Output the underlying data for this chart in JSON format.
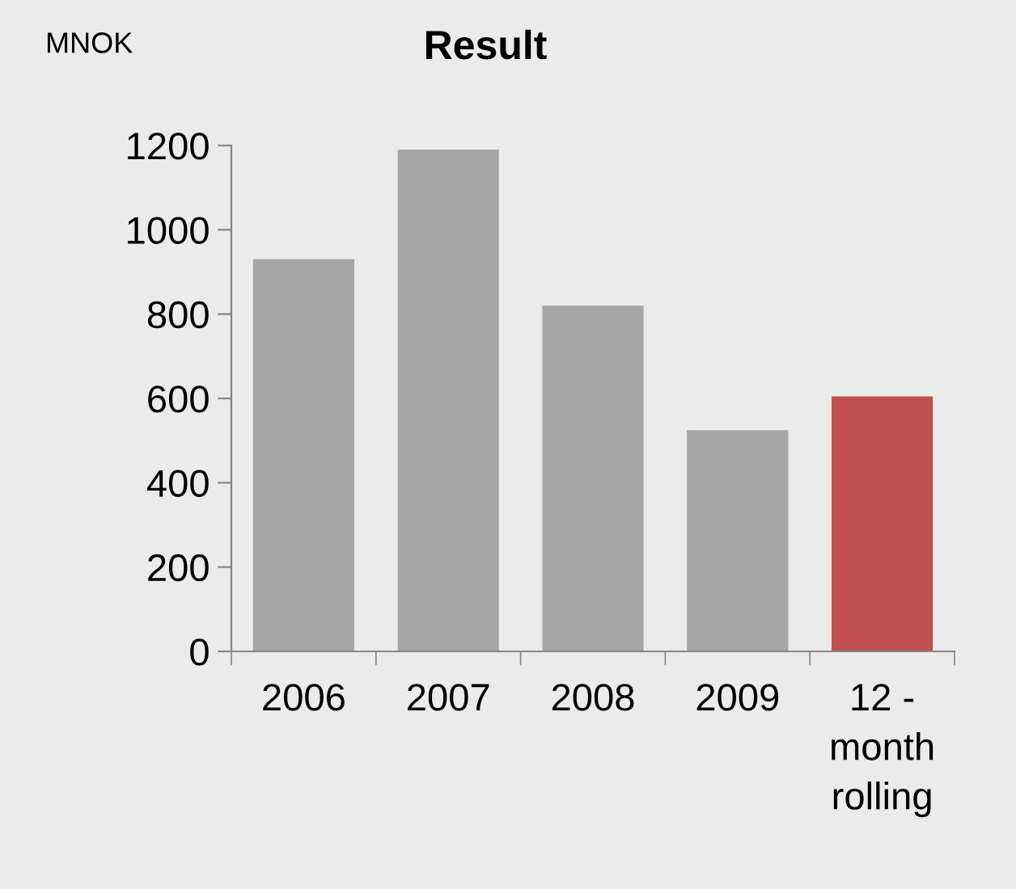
{
  "chart_data": {
    "type": "bar",
    "title": "Result",
    "ylabel": "MNOK",
    "categories": [
      "2006",
      "2007",
      "2008",
      "2009",
      "12 -\nmonth\nrolling"
    ],
    "values": [
      930,
      1190,
      820,
      525,
      605
    ],
    "colors": [
      "#a6a6a6",
      "#a6a6a6",
      "#a6a6a6",
      "#a6a6a6",
      "#c0504d"
    ],
    "ylim": [
      0,
      1200
    ],
    "yticks": [
      0,
      200,
      400,
      600,
      800,
      1000,
      1200
    ],
    "grid": false,
    "legend": false
  }
}
